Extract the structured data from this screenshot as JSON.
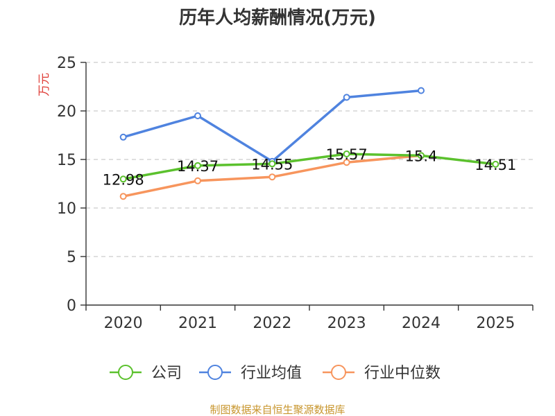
{
  "chart_data": {
    "type": "line",
    "title": "历年人均薪酬情况(万元)",
    "ylabel": "万元",
    "xlabel": "",
    "categories": [
      "2020",
      "2021",
      "2022",
      "2023",
      "2024",
      "2025"
    ],
    "ylim": [
      0,
      25
    ],
    "yticks": [
      "0",
      "5",
      "10",
      "15",
      "20",
      "25"
    ],
    "grid": true,
    "legend_position": "bottom",
    "series": [
      {
        "name": "公司",
        "color": "#5bc12d",
        "values": [
          12.98,
          14.37,
          14.55,
          15.57,
          15.4,
          14.51
        ],
        "labels": [
          "12.98",
          "14.37",
          "14.55",
          "15.57",
          "15.4",
          "14.51"
        ]
      },
      {
        "name": "行业均值",
        "color": "#4f83df",
        "values": [
          17.3,
          19.5,
          14.8,
          21.4,
          22.1,
          null
        ]
      },
      {
        "name": "行业中位数",
        "color": "#f7955d",
        "values": [
          11.2,
          12.8,
          13.2,
          14.7,
          15.4,
          null
        ]
      }
    ]
  },
  "footer": {
    "source": "制图数据来自恒生聚源数据库"
  }
}
